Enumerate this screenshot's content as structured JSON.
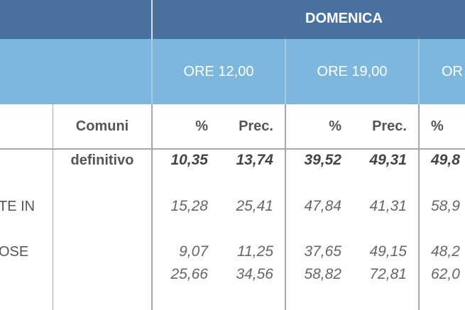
{
  "header": {
    "group": "DOMENICA",
    "times": [
      "ORE 12,00",
      "ORE 19,00",
      "OR"
    ]
  },
  "columns": [
    "Comuni",
    "%",
    "Prec.",
    "%",
    "Prec.",
    "%"
  ],
  "rows": [
    {
      "comuni": "definitivo",
      "values": [
        "10,35",
        "13,74",
        "39,52",
        "49,31",
        "49,8"
      ]
    },
    {
      "label": "TE IN",
      "values": [
        "15,28",
        "25,41",
        "47,84",
        "41,31",
        "58,9"
      ]
    },
    {
      "label": "OSE",
      "values": [
        "9,07",
        "11,25",
        "37,65",
        "49,15",
        "48,2"
      ]
    },
    {
      "values": [
        "25,66",
        "34,56",
        "58,82",
        "72,81",
        "62,0"
      ]
    }
  ]
}
